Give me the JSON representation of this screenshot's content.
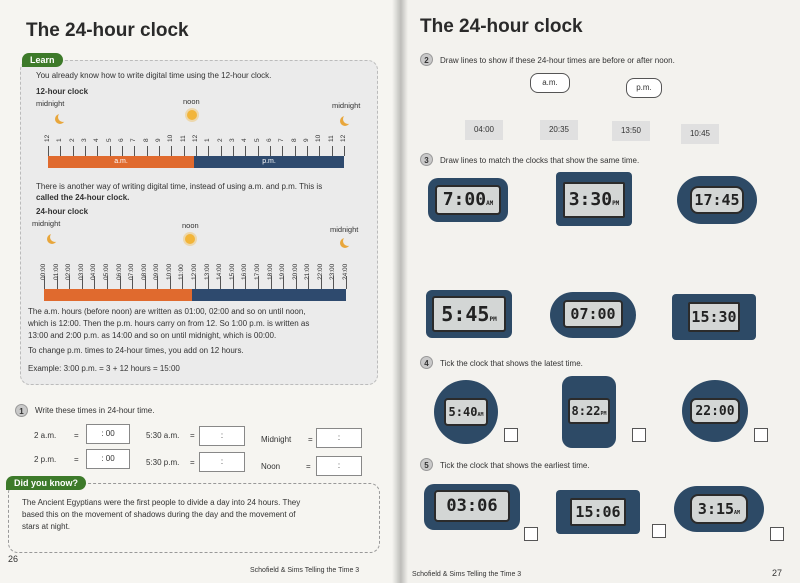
{
  "left": {
    "title": "The 24-hour clock",
    "learn_tag": "Learn",
    "intro": "You already know how to write digital time using the 12-hour clock.",
    "clock12_label": "12-hour clock",
    "midnight": "midnight",
    "noon": "noon",
    "hours12": [
      "12",
      "1",
      "2",
      "3",
      "4",
      "5",
      "6",
      "7",
      "8",
      "9",
      "10",
      "11",
      "12",
      "1",
      "2",
      "3",
      "4",
      "5",
      "6",
      "7",
      "8",
      "9",
      "10",
      "11",
      "12"
    ],
    "am": "a.m.",
    "pm": "p.m.",
    "other_way_1": "There is another way of writing digital time, instead of using a.m. and p.m. This is",
    "other_way_2": "called the 24-hour clock.",
    "clock24_label": "24-hour clock",
    "hours24": [
      "00:00",
      "01:00",
      "02:00",
      "03:00",
      "04:00",
      "05:00",
      "06:00",
      "07:00",
      "08:00",
      "09:00",
      "10:00",
      "11:00",
      "12:00",
      "13:00",
      "14:00",
      "15:00",
      "16:00",
      "17:00",
      "18:00",
      "19:00",
      "20:00",
      "21:00",
      "22:00",
      "23:00",
      "24:00"
    ],
    "expl_1": "The a.m. hours (before noon) are written as 01:00, 02:00 and so on until noon,",
    "expl_2": "which is 12:00. Then the p.m. hours carry on from 12. So 1:00 p.m. is written as",
    "expl_3": "13:00 and 2:00 p.m. as 14:00 and so on until midnight, which is 00:00.",
    "expl_4": "To change p.m. times to 24-hour times, you add on 12 hours.",
    "expl_5": "Example: 3:00 p.m. = 3 + 12 hours = 15:00",
    "q1_num": "1",
    "q1_text": "Write these times in 24-hour time.",
    "q1_items": {
      "a1": "2 a.m.",
      "a1_box": ": 00",
      "a2": "5:30 a.m.",
      "a2_box": ":",
      "a3": "Midnight",
      "a3_box": ":",
      "b1": "2 p.m.",
      "b1_box": ": 00",
      "b2": "5:30 p.m.",
      "b2_box": ":",
      "b3": "Noon",
      "b3_box": ":",
      "eq": "="
    },
    "know_tag": "Did you know?",
    "know_1": "The Ancient Egyptians were the first people to divide a day into 24 hours. They",
    "know_2": "based this on the movement of shadows during the day and the movement of",
    "know_3": "stars at night.",
    "page_num": "26",
    "footer": "Schofield & Sims Telling the Time 3"
  },
  "right": {
    "title": "The 24-hour clock",
    "q2_num": "2",
    "q2_text": "Draw lines to show if these 24-hour times are before or after noon.",
    "am": "a.m.",
    "pm": "p.m.",
    "times": [
      "04:00",
      "20:35",
      "13:50",
      "10:45"
    ],
    "q3_num": "3",
    "q3_text": "Draw lines to match the clocks that show the same time.",
    "q3_top": [
      {
        "t": "7:00",
        "s": "AM"
      },
      {
        "t": "3:30",
        "s": "PM"
      },
      {
        "t": "17:45",
        "s": ""
      }
    ],
    "q3_bottom": [
      {
        "t": "5:45",
        "s": "PM"
      },
      {
        "t": "07:00",
        "s": ""
      },
      {
        "t": "15:30",
        "s": ""
      }
    ],
    "q4_num": "4",
    "q4_text": "Tick the clock that shows the latest time.",
    "q4_clocks": [
      {
        "t": "5:40",
        "s": "AM"
      },
      {
        "t": "8:22",
        "s": "PM"
      },
      {
        "t": "22:00",
        "s": ""
      }
    ],
    "q5_num": "5",
    "q5_text": "Tick the clock that shows the earliest time.",
    "q5_clocks": [
      {
        "t": "03:06",
        "s": ""
      },
      {
        "t": "15:06",
        "s": ""
      },
      {
        "t": "3:15",
        "s": "AM"
      }
    ],
    "footer": "Schofield & Sims Telling the Time 3",
    "page_num": "27"
  }
}
